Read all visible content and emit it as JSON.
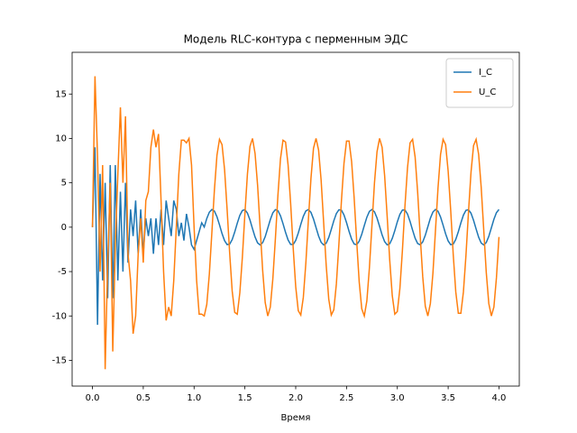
{
  "chart_data": {
    "type": "line",
    "title": "Модель RLC-контура с перменным ЭДС",
    "xlabel": "Время",
    "x": [
      0,
      0.025,
      0.05,
      0.075,
      0.1,
      0.125,
      0.15,
      0.175,
      0.2,
      0.225,
      0.25,
      0.275,
      0.3,
      0.325,
      0.35,
      0.375,
      0.4,
      0.425,
      0.45,
      0.475,
      0.5,
      0.525,
      0.55,
      0.575,
      0.6,
      0.625,
      0.65,
      0.675,
      0.7,
      0.725,
      0.75,
      0.775,
      0.8,
      0.825,
      0.85,
      0.875,
      0.9,
      0.925,
      0.95,
      0.975,
      1,
      1.025,
      1.05,
      1.075,
      1.1,
      1.125,
      1.15,
      1.175,
      1.2,
      1.225,
      1.25,
      1.275,
      1.3,
      1.325,
      1.35,
      1.375,
      1.4,
      1.425,
      1.45,
      1.475,
      1.5,
      1.525,
      1.55,
      1.575,
      1.6,
      1.625,
      1.65,
      1.675,
      1.7,
      1.725,
      1.75,
      1.775,
      1.8,
      1.825,
      1.85,
      1.875,
      1.9,
      1.925,
      1.95,
      1.975,
      2,
      2.025,
      2.05,
      2.075,
      2.1,
      2.125,
      2.15,
      2.175,
      2.2,
      2.225,
      2.25,
      2.275,
      2.3,
      2.325,
      2.35,
      2.375,
      2.4,
      2.425,
      2.45,
      2.475,
      2.5,
      2.525,
      2.55,
      2.575,
      2.6,
      2.625,
      2.65,
      2.675,
      2.7,
      2.725,
      2.75,
      2.775,
      2.8,
      2.825,
      2.85,
      2.875,
      2.9,
      2.925,
      2.95,
      2.975,
      3,
      3.025,
      3.05,
      3.075,
      3.1,
      3.125,
      3.15,
      3.175,
      3.2,
      3.225,
      3.25,
      3.275,
      3.3,
      3.325,
      3.35,
      3.375,
      3.4,
      3.425,
      3.45,
      3.475,
      3.5,
      3.525,
      3.55,
      3.575,
      3.6,
      3.625,
      3.65,
      3.675,
      3.7,
      3.725,
      3.75,
      3.775,
      3.8,
      3.825,
      3.85,
      3.875,
      3.9,
      3.925,
      3.95,
      3.975,
      4
    ],
    "series": [
      {
        "name": "I_C",
        "color": "#1f77b4",
        "values": [
          0,
          9,
          -11,
          6,
          -6,
          5,
          -8,
          7,
          -8,
          7,
          -6,
          4,
          -5,
          5,
          -4,
          2,
          -1,
          3,
          -3,
          2,
          -3,
          1,
          -1,
          1,
          -3,
          1,
          -2,
          2,
          -2,
          3,
          1,
          -1,
          3,
          2,
          -1,
          0.5,
          -1.5,
          1.5,
          0,
          -2,
          -2.5,
          -1.5,
          -0.5,
          0.5,
          0.02,
          0.98,
          1.69,
          2.0,
          1.81,
          1.18,
          0.27,
          -0.72,
          -1.52,
          -1.96,
          -1.91,
          -1.4,
          -0.54,
          0.45,
          1.33,
          1.88,
          1.98,
          1.59,
          0.81,
          -0.17,
          -1.1,
          -1.77,
          -2.0,
          -1.74,
          -1.06,
          -0.11,
          0.85,
          1.62,
          1.98,
          1.86,
          1.29,
          0.4,
          -0.59,
          -1.44,
          -1.93,
          -1.95,
          -1.49,
          -0.67,
          0.32,
          1.23,
          1.83,
          1.99,
          1.67,
          0.92,
          -0.04,
          -0.99,
          -1.7,
          -2.0,
          -1.8,
          -1.17,
          -0.25,
          0.73,
          1.54,
          1.96,
          1.91,
          1.38,
          0.52,
          -0.47,
          -1.34,
          -1.89,
          -1.97,
          -1.57,
          -0.79,
          0.19,
          1.12,
          1.78,
          2.0,
          1.73,
          1.04,
          0.1,
          -0.87,
          -1.63,
          -1.99,
          -1.86,
          -1.27,
          -0.38,
          0.61,
          1.45,
          1.93,
          1.94,
          1.48,
          0.65,
          -0.33,
          -1.24,
          -1.84,
          -1.99,
          -1.65,
          -0.91,
          0.05,
          1.01,
          1.71,
          2.0,
          1.8,
          1.15,
          0.23,
          -0.75,
          -1.55,
          -1.97,
          -1.9,
          -1.37,
          -0.51,
          0.48,
          1.36,
          1.9,
          1.97,
          1.57,
          0.77,
          -0.2,
          -1.13,
          -1.78,
          -2.0,
          -1.72,
          -1.03,
          -0.08,
          0.89,
          1.64,
          1.99
        ]
      },
      {
        "name": "U_C",
        "color": "#ff7f0e",
        "values": [
          0,
          17,
          8,
          -5,
          7,
          -16,
          -4,
          5,
          -14,
          -2,
          6,
          13.5,
          5,
          12.5,
          -3,
          -6,
          -12,
          -10,
          -3,
          1,
          -4,
          3,
          4,
          9,
          11,
          9,
          10.5,
          3,
          -5,
          -10.5,
          -9,
          -10,
          -6,
          0,
          6,
          9.8,
          9.8,
          9.5,
          10,
          7,
          0,
          -6,
          -9.8,
          -9.8,
          -10.0,
          -8.7,
          -5.3,
          -0.6,
          4.2,
          8.1,
          9.9,
          9.3,
          6.5,
          2.0,
          -2.9,
          -7.2,
          -9.6,
          -9.8,
          -7.4,
          -3.4,
          1.5,
          6.0,
          9.1,
          10.0,
          8.3,
          4.7,
          -0.1,
          -4.9,
          -8.5,
          -10.0,
          -9.0,
          -5.8,
          -1.3,
          3.6,
          7.7,
          9.8,
          9.6,
          7.0,
          2.7,
          -2.3,
          -6.7,
          -9.4,
          -9.9,
          -7.9,
          -4.0,
          0.9,
          5.5,
          8.9,
          10.0,
          8.7,
          5.3,
          0.5,
          -4.3,
          -8.1,
          -9.9,
          -9.3,
          -6.4,
          -1.9,
          3.0,
          7.2,
          9.7,
          9.7,
          7.4,
          3.3,
          -1.6,
          -6.2,
          -9.2,
          -10.0,
          -8.3,
          -4.6,
          0.2,
          5.0,
          8.5,
          10.0,
          9.0,
          5.8,
          1.2,
          -3.7,
          -7.7,
          -9.8,
          -9.5,
          -6.9,
          -2.6,
          2.4,
          6.7,
          9.5,
          9.9,
          7.9,
          3.9,
          -1.0,
          -5.6,
          -8.9,
          -10.0,
          -8.6,
          -5.2,
          -0.4,
          4.4,
          8.2,
          9.9,
          9.3,
          6.3,
          1.9,
          -3.1,
          -7.3,
          -9.7,
          -9.7,
          -7.3,
          -3.2,
          1.7,
          6.2,
          9.2,
          9.9,
          8.2,
          4.5,
          -0.3,
          -5.1,
          -8.6,
          -10.0,
          -9.0,
          -5.7,
          -1.1
        ]
      }
    ],
    "xlim": [
      -0.2,
      4.2
    ],
    "ylim": [
      -17.9,
      19.7
    ],
    "xticks": [
      {
        "value": 0,
        "label": "0.0"
      },
      {
        "value": 0.5,
        "label": "0.5"
      },
      {
        "value": 1,
        "label": "1.0"
      },
      {
        "value": 1.5,
        "label": "1.5"
      },
      {
        "value": 2,
        "label": "2.0"
      },
      {
        "value": 2.5,
        "label": "2.5"
      },
      {
        "value": 3,
        "label": "3.0"
      },
      {
        "value": 3.5,
        "label": "3.5"
      },
      {
        "value": 4,
        "label": "4.0"
      }
    ],
    "yticks": [
      -15,
      -10,
      -5,
      0,
      5,
      10,
      15
    ],
    "legend": "upper right",
    "grid": false
  }
}
